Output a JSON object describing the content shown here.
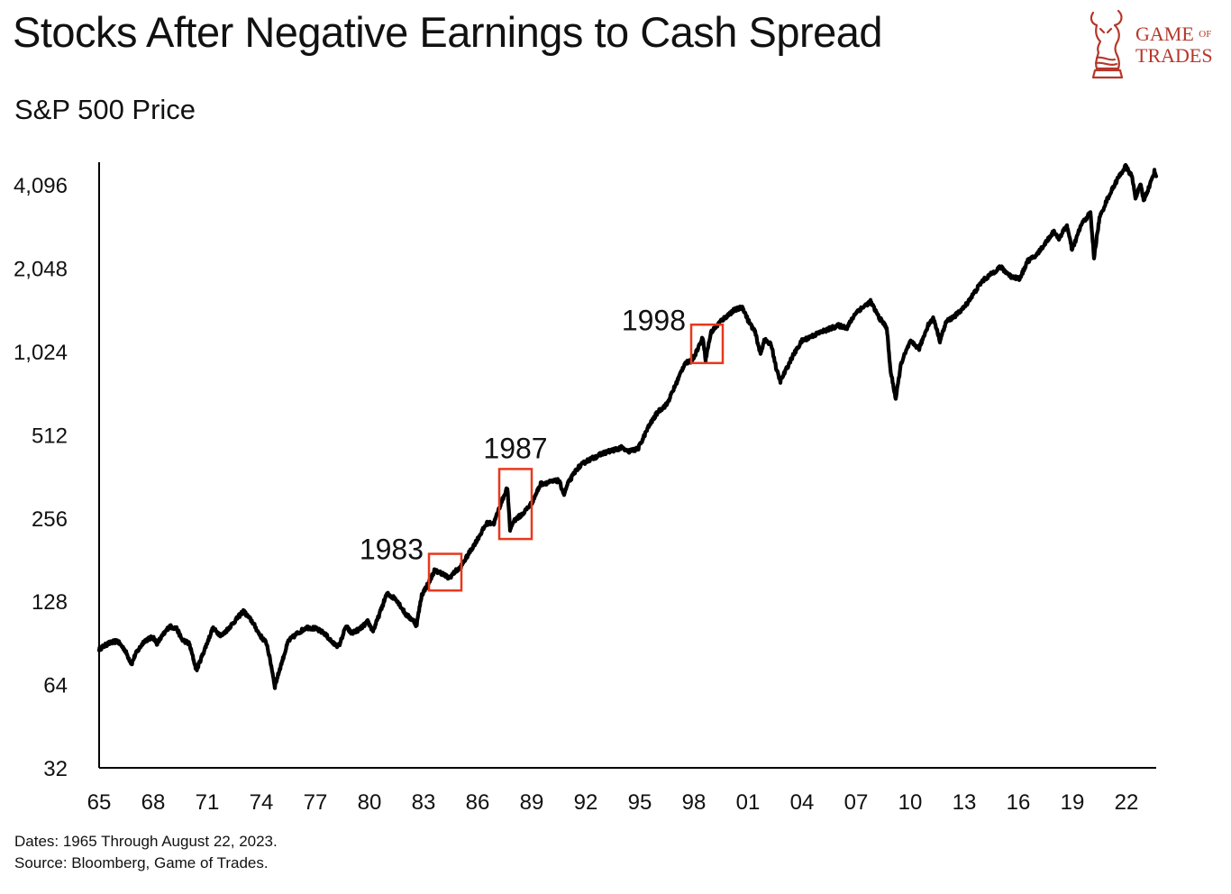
{
  "header": {
    "title": "Stocks After Negative Earnings to Cash Spread",
    "subtitle": "S&P 500 Price"
  },
  "logo": {
    "line1_main": "GAME",
    "line1_small": "OF",
    "line2": "TRADES",
    "color": "#b5372a",
    "icon": "bull-chess-knight-icon"
  },
  "footnotes": {
    "dates": "Dates: 1965 Through August 22, 2023.",
    "source": "Source: Bloomberg, Game of Trades."
  },
  "chart_data": {
    "type": "line",
    "scale": "log2",
    "title": "Stocks After Negative Earnings to Cash Spread",
    "ylabel": "S&P 500 Price",
    "xlabel": "",
    "xlim": [
      1965,
      2023.65
    ],
    "ylim": [
      32,
      5800
    ],
    "y_ticks": [
      {
        "value": 32,
        "label": "32"
      },
      {
        "value": 64,
        "label": "64"
      },
      {
        "value": 128,
        "label": "128"
      },
      {
        "value": 256,
        "label": "256"
      },
      {
        "value": 512,
        "label": "512"
      },
      {
        "value": 1024,
        "label": "1,024"
      },
      {
        "value": 2048,
        "label": "2,048"
      },
      {
        "value": 4096,
        "label": "4,096"
      }
    ],
    "x_ticks": [
      {
        "value": 1965,
        "label": "65"
      },
      {
        "value": 1968,
        "label": "68"
      },
      {
        "value": 1971,
        "label": "71"
      },
      {
        "value": 1974,
        "label": "74"
      },
      {
        "value": 1977,
        "label": "77"
      },
      {
        "value": 1980,
        "label": "80"
      },
      {
        "value": 1983,
        "label": "83"
      },
      {
        "value": 1986,
        "label": "86"
      },
      {
        "value": 1989,
        "label": "89"
      },
      {
        "value": 1992,
        "label": "92"
      },
      {
        "value": 1995,
        "label": "95"
      },
      {
        "value": 1998,
        "label": "98"
      },
      {
        "value": 2001,
        "label": "01"
      },
      {
        "value": 2004,
        "label": "04"
      },
      {
        "value": 2007,
        "label": "07"
      },
      {
        "value": 2010,
        "label": "10"
      },
      {
        "value": 2013,
        "label": "13"
      },
      {
        "value": 2016,
        "label": "16"
      },
      {
        "value": 2019,
        "label": "19"
      },
      {
        "value": 2022,
        "label": "22"
      }
    ],
    "series": [
      {
        "name": "S&P 500 Price",
        "color": "#000000",
        "points": [
          [
            1965.0,
            86
          ],
          [
            1965.5,
            90
          ],
          [
            1966.0,
            92
          ],
          [
            1966.4,
            86
          ],
          [
            1966.8,
            76
          ],
          [
            1967.0,
            82
          ],
          [
            1967.5,
            92
          ],
          [
            1968.0,
            95
          ],
          [
            1968.2,
            90
          ],
          [
            1968.9,
            104
          ],
          [
            1969.3,
            102
          ],
          [
            1969.6,
            93
          ],
          [
            1970.0,
            90
          ],
          [
            1970.4,
            72
          ],
          [
            1970.8,
            84
          ],
          [
            1971.3,
            102
          ],
          [
            1971.8,
            96
          ],
          [
            1972.5,
            108
          ],
          [
            1973.0,
            118
          ],
          [
            1973.5,
            108
          ],
          [
            1973.9,
            97
          ],
          [
            1974.3,
            90
          ],
          [
            1974.6,
            72
          ],
          [
            1974.75,
            63
          ],
          [
            1975.0,
            72
          ],
          [
            1975.5,
            92
          ],
          [
            1976.0,
            98
          ],
          [
            1976.5,
            103
          ],
          [
            1977.0,
            102
          ],
          [
            1977.5,
            98
          ],
          [
            1978.0,
            90
          ],
          [
            1978.3,
            88
          ],
          [
            1978.7,
            104
          ],
          [
            1979.0,
            98
          ],
          [
            1979.5,
            102
          ],
          [
            1979.9,
            108
          ],
          [
            1980.2,
            100
          ],
          [
            1980.4,
            108
          ],
          [
            1980.9,
            133
          ],
          [
            1981.0,
            136
          ],
          [
            1981.5,
            130
          ],
          [
            1982.0,
            115
          ],
          [
            1982.5,
            108
          ],
          [
            1982.6,
            104
          ],
          [
            1982.9,
            135
          ],
          [
            1983.3,
            150
          ],
          [
            1983.6,
            165
          ],
          [
            1984.0,
            162
          ],
          [
            1984.4,
            155
          ],
          [
            1984.8,
            165
          ],
          [
            1985.0,
            168
          ],
          [
            1985.5,
            190
          ],
          [
            1986.0,
            215
          ],
          [
            1986.5,
            245
          ],
          [
            1986.9,
            245
          ],
          [
            1987.3,
            290
          ],
          [
            1987.65,
            330
          ],
          [
            1987.8,
            232
          ],
          [
            1988.0,
            250
          ],
          [
            1988.5,
            265
          ],
          [
            1989.0,
            290
          ],
          [
            1989.5,
            340
          ],
          [
            1990.0,
            345
          ],
          [
            1990.5,
            350
          ],
          [
            1990.8,
            312
          ],
          [
            1991.0,
            340
          ],
          [
            1991.5,
            385
          ],
          [
            1992.0,
            410
          ],
          [
            1993.0,
            440
          ],
          [
            1994.0,
            460
          ],
          [
            1994.3,
            445
          ],
          [
            1994.9,
            455
          ],
          [
            1995.5,
            550
          ],
          [
            1996.0,
            620
          ],
          [
            1996.5,
            660
          ],
          [
            1997.0,
            780
          ],
          [
            1997.5,
            930
          ],
          [
            1997.8,
            940
          ],
          [
            1998.0,
            980
          ],
          [
            1998.5,
            1150
          ],
          [
            1998.65,
            960
          ],
          [
            1998.95,
            1200
          ],
          [
            1999.5,
            1320
          ],
          [
            2000.2,
            1440
          ],
          [
            2000.7,
            1480
          ],
          [
            2001.0,
            1330
          ],
          [
            2001.4,
            1200
          ],
          [
            2001.7,
            1000
          ],
          [
            2001.9,
            1130
          ],
          [
            2002.3,
            1080
          ],
          [
            2002.6,
            870
          ],
          [
            2002.8,
            800
          ],
          [
            2003.0,
            850
          ],
          [
            2003.5,
            990
          ],
          [
            2004.0,
            1120
          ],
          [
            2005.0,
            1200
          ],
          [
            2006.0,
            1270
          ],
          [
            2006.5,
            1250
          ],
          [
            2007.0,
            1420
          ],
          [
            2007.8,
            1550
          ],
          [
            2008.3,
            1350
          ],
          [
            2008.7,
            1250
          ],
          [
            2008.9,
            880
          ],
          [
            2009.2,
            690
          ],
          [
            2009.5,
            930
          ],
          [
            2010.0,
            1110
          ],
          [
            2010.5,
            1050
          ],
          [
            2011.0,
            1280
          ],
          [
            2011.3,
            1350
          ],
          [
            2011.65,
            1120
          ],
          [
            2012.0,
            1310
          ],
          [
            2012.5,
            1380
          ],
          [
            2013.0,
            1480
          ],
          [
            2014.0,
            1840
          ],
          [
            2015.0,
            2070
          ],
          [
            2015.6,
            1910
          ],
          [
            2016.1,
            1880
          ],
          [
            2016.5,
            2170
          ],
          [
            2017.0,
            2280
          ],
          [
            2018.0,
            2800
          ],
          [
            2018.2,
            2600
          ],
          [
            2018.7,
            2920
          ],
          [
            2018.98,
            2380
          ],
          [
            2019.5,
            2950
          ],
          [
            2020.0,
            3250
          ],
          [
            2020.2,
            2240
          ],
          [
            2020.5,
            3100
          ],
          [
            2020.9,
            3600
          ],
          [
            2021.5,
            4300
          ],
          [
            2021.95,
            4780
          ],
          [
            2022.3,
            4400
          ],
          [
            2022.5,
            3700
          ],
          [
            2022.8,
            4100
          ],
          [
            2022.95,
            3600
          ],
          [
            2023.3,
            4100
          ],
          [
            2023.55,
            4580
          ],
          [
            2023.65,
            4400
          ]
        ]
      }
    ],
    "annotations": [
      {
        "label": "1983",
        "x0": 1983.3,
        "x1": 1985.1,
        "y0": 140,
        "y1": 190,
        "color": "#e8381d"
      },
      {
        "label": "1987",
        "x0": 1987.2,
        "x1": 1989.0,
        "y0": 215,
        "y1": 385,
        "color": "#e8381d"
      },
      {
        "label": "1998",
        "x0": 1997.85,
        "x1": 1999.6,
        "y0": 930,
        "y1": 1280,
        "color": "#e8381d"
      }
    ]
  }
}
